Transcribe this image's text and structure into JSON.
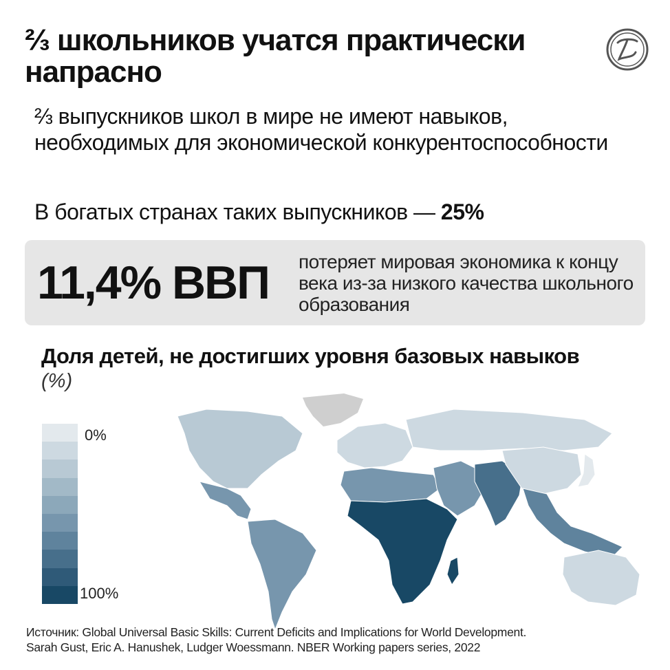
{
  "header": {
    "title": "⅔ школьников учатся практически напрасно"
  },
  "lead": {
    "text": "⅔ выпускников школ в мире не имеют навыков, необходимых для экономической конкурентоспособности"
  },
  "rich_countries": {
    "text": "В богатых странах таких выпускников — ",
    "value": "25%"
  },
  "banner": {
    "big_value": "11,4% ВВП",
    "description": "потеряет мировая экономика к концу века из-за низкого качества школьного образования"
  },
  "map": {
    "title": "Доля детей, не достигших уровня базовых навыков",
    "unit": "(%)",
    "legend": {
      "min_label": "0%",
      "max_label": "100%",
      "steps": [
        "#e3e9ed",
        "#cdd9e1",
        "#b8c9d4",
        "#a2b9c7",
        "#8ca8ba",
        "#7796ad",
        "#5f839d",
        "#476f8b",
        "#2f5a78",
        "#184865"
      ]
    },
    "no_data_color": "#cfcfcf",
    "regions": [
      {
        "name": "North America",
        "level": 0.2
      },
      {
        "name": "Central America",
        "level": 0.5
      },
      {
        "name": "South America",
        "level": 0.55
      },
      {
        "name": "Europe",
        "level": 0.15
      },
      {
        "name": "Russia",
        "level": 0.1
      },
      {
        "name": "North Africa",
        "level": 0.6
      },
      {
        "name": "Sub-Saharan Africa",
        "level": 0.95
      },
      {
        "name": "Middle East",
        "level": 0.55
      },
      {
        "name": "South Asia",
        "level": 0.75
      },
      {
        "name": "China",
        "level": 0.1
      },
      {
        "name": "Southeast Asia",
        "level": 0.7
      },
      {
        "name": "Japan",
        "level": 0.05
      },
      {
        "name": "Australia",
        "level": 0.1
      }
    ]
  },
  "source": {
    "line1": "Источник: Global Universal Basic Skills: Current Deficits and Implications for World Development.",
    "line2": "Sarah Gust, Eric A. Hanushek, Ludger Woessmann. NBER Working papers series, 2022"
  },
  "icons": {
    "logo": "publisher-logo-icon"
  }
}
